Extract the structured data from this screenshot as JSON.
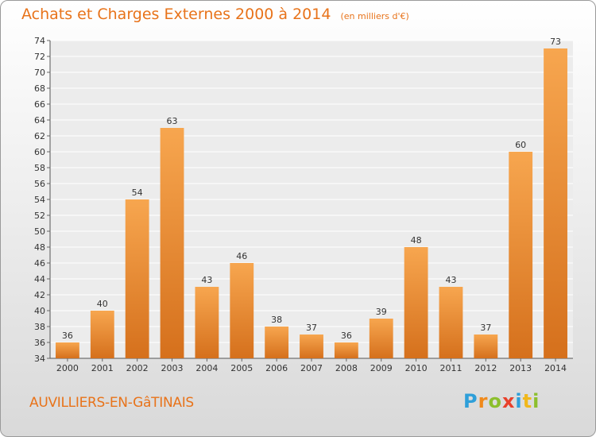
{
  "title": "Achats et Charges Externes 2000 à 2014",
  "subtitle": "(en milliers d'€)",
  "commune": "AUVILLIERS-EN-GâTINAIS",
  "logo": {
    "text": "Proxiti",
    "letters": [
      {
        "ch": "P",
        "color": "#2e9fd9"
      },
      {
        "ch": "r",
        "color": "#f08a1c"
      },
      {
        "ch": "o",
        "color": "#8cbf2d"
      },
      {
        "ch": "x",
        "color": "#e8402a"
      },
      {
        "ch": "i",
        "color": "#2e9fd9"
      },
      {
        "ch": "t",
        "color": "#f0b81c"
      },
      {
        "ch": "i",
        "color": "#8cbf2d"
      }
    ]
  },
  "colors": {
    "bar_top": "#f7a64f",
    "bar_bottom": "#d5701c",
    "accent": "#e8731a"
  },
  "chart_data": {
    "type": "bar",
    "title": "Achats et Charges Externes 2000 à 2014",
    "subtitle": "(en milliers d'€)",
    "categories": [
      "2000",
      "2001",
      "2002",
      "2003",
      "2004",
      "2005",
      "2006",
      "2007",
      "2008",
      "2009",
      "2010",
      "2011",
      "2012",
      "2013",
      "2014"
    ],
    "values": [
      36,
      40,
      54,
      63,
      43,
      46,
      38,
      37,
      36,
      39,
      48,
      43,
      37,
      60,
      73
    ],
    "ylim": [
      34,
      74
    ],
    "yticks": [
      34,
      36,
      38,
      40,
      42,
      44,
      46,
      48,
      50,
      52,
      54,
      56,
      58,
      60,
      62,
      64,
      66,
      68,
      70,
      72,
      74
    ],
    "grid": true,
    "data_labels": true
  }
}
